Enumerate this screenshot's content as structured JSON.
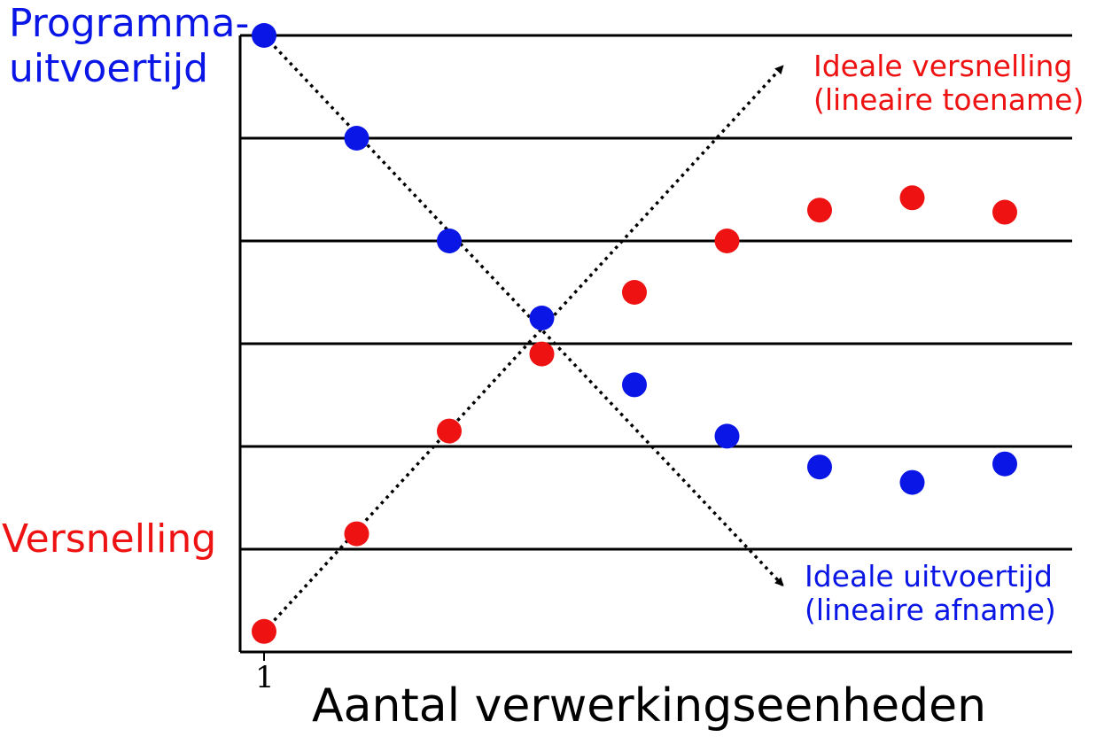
{
  "chart_data": {
    "type": "scatter",
    "xlabel": "Aantal verwerkingseenheden",
    "x_tick_labels": [
      "1"
    ],
    "x": [
      1,
      2,
      3,
      4,
      5,
      6,
      7,
      8,
      9
    ],
    "series": [
      {
        "name": "Programma-uitvoertijd",
        "color": "#0a16e6",
        "values": [
          6.0,
          5.0,
          4.0,
          3.25,
          2.6,
          2.1,
          1.8,
          1.65,
          1.83
        ]
      },
      {
        "name": "Versnelling",
        "color": "#ee1212",
        "values": [
          0.2,
          1.15,
          2.15,
          2.9,
          3.5,
          4.0,
          4.3,
          4.42,
          4.28
        ]
      }
    ],
    "ideal_lines": [
      {
        "label_line1": "Ideale versnelling",
        "label_line2": "(lineaire toename)",
        "color": "#ee1212",
        "from": [
          1,
          0.2
        ],
        "to": [
          6.6,
          5.7
        ]
      },
      {
        "label_line1": "Ideale uitvoertijd",
        "label_line2": "(lineaire afname)",
        "color": "#0a16e6",
        "from": [
          1,
          6.0
        ],
        "to": [
          6.6,
          0.65
        ]
      }
    ],
    "ylim": [
      0,
      6
    ],
    "grid": true,
    "y_left_label_top": "Programma-uitvoertijd",
    "y_left_label_bottom": "Versnelling"
  },
  "labels": {
    "runtime_line1": "Programma-",
    "runtime_line2": "uitvoertijd",
    "speedup": "Versnelling",
    "ideal_speedup_line1": "Ideale versnelling",
    "ideal_speedup_line2": "(lineaire toename)",
    "ideal_runtime_line1": "Ideale uitvoertijd",
    "ideal_runtime_line2": "(lineaire afname)",
    "xlabel": "Aantal verwerkingseenheden",
    "xtick": "1"
  }
}
